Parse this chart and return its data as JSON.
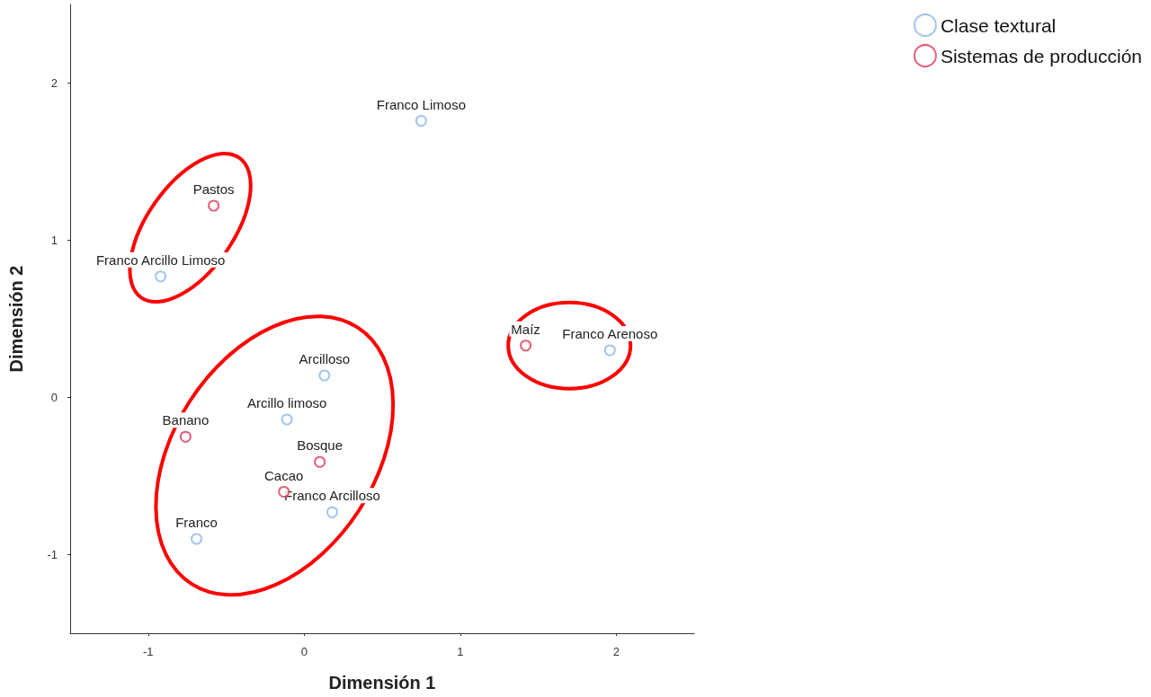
{
  "chart_data": {
    "type": "scatter",
    "xlabel": "Dimensión 1",
    "ylabel": "Dimensión 2",
    "xlim": [
      -1.5,
      2.5
    ],
    "xticks": [
      -1,
      0,
      1,
      2
    ],
    "ylim": [
      -1.5,
      2.5
    ],
    "yticks": [
      -1,
      0,
      1,
      2
    ],
    "grid": false,
    "legend": "top right",
    "marker": "circle",
    "series": [
      {
        "name": "Clase textural",
        "color": "#8fb6ea",
        "x": [
          0.75,
          -0.92,
          1.96,
          0.13,
          -0.11,
          0.18,
          -0.69
        ],
        "values": [
          1.76,
          0.77,
          0.3,
          0.14,
          -0.14,
          -0.73,
          -0.9
        ]
      },
      {
        "name": "Sistemas de producción",
        "color": "#e0385a",
        "x": [
          -0.58,
          1.42,
          -0.76,
          0.1,
          -0.13
        ],
        "values": [
          1.22,
          0.33,
          -0.25,
          -0.41,
          -0.6
        ]
      }
    ],
    "annotations": [
      {
        "text": "Franco Limoso",
        "x": 0.75,
        "y": 1.76
      },
      {
        "text": "Franco Arcillo Limoso",
        "x": -0.92,
        "y": 0.77
      },
      {
        "text": "Franco Arenoso",
        "x": 1.96,
        "y": 0.3
      },
      {
        "text": "Arcilloso",
        "x": 0.13,
        "y": 0.14
      },
      {
        "text": "Arcillo limoso",
        "x": -0.11,
        "y": -0.14
      },
      {
        "text": "Franco Arcilloso",
        "x": 0.18,
        "y": -0.73
      },
      {
        "text": "Franco",
        "x": -0.69,
        "y": -0.9
      },
      {
        "text": "Pastos",
        "x": -0.58,
        "y": 1.22
      },
      {
        "text": "Maíz",
        "x": 1.42,
        "y": 0.33
      },
      {
        "text": "Banano",
        "x": -0.76,
        "y": -0.25
      },
      {
        "text": "Bosque",
        "x": 0.1,
        "y": -0.41
      },
      {
        "text": "Cacao",
        "x": -0.13,
        "y": -0.6
      }
    ]
  }
}
